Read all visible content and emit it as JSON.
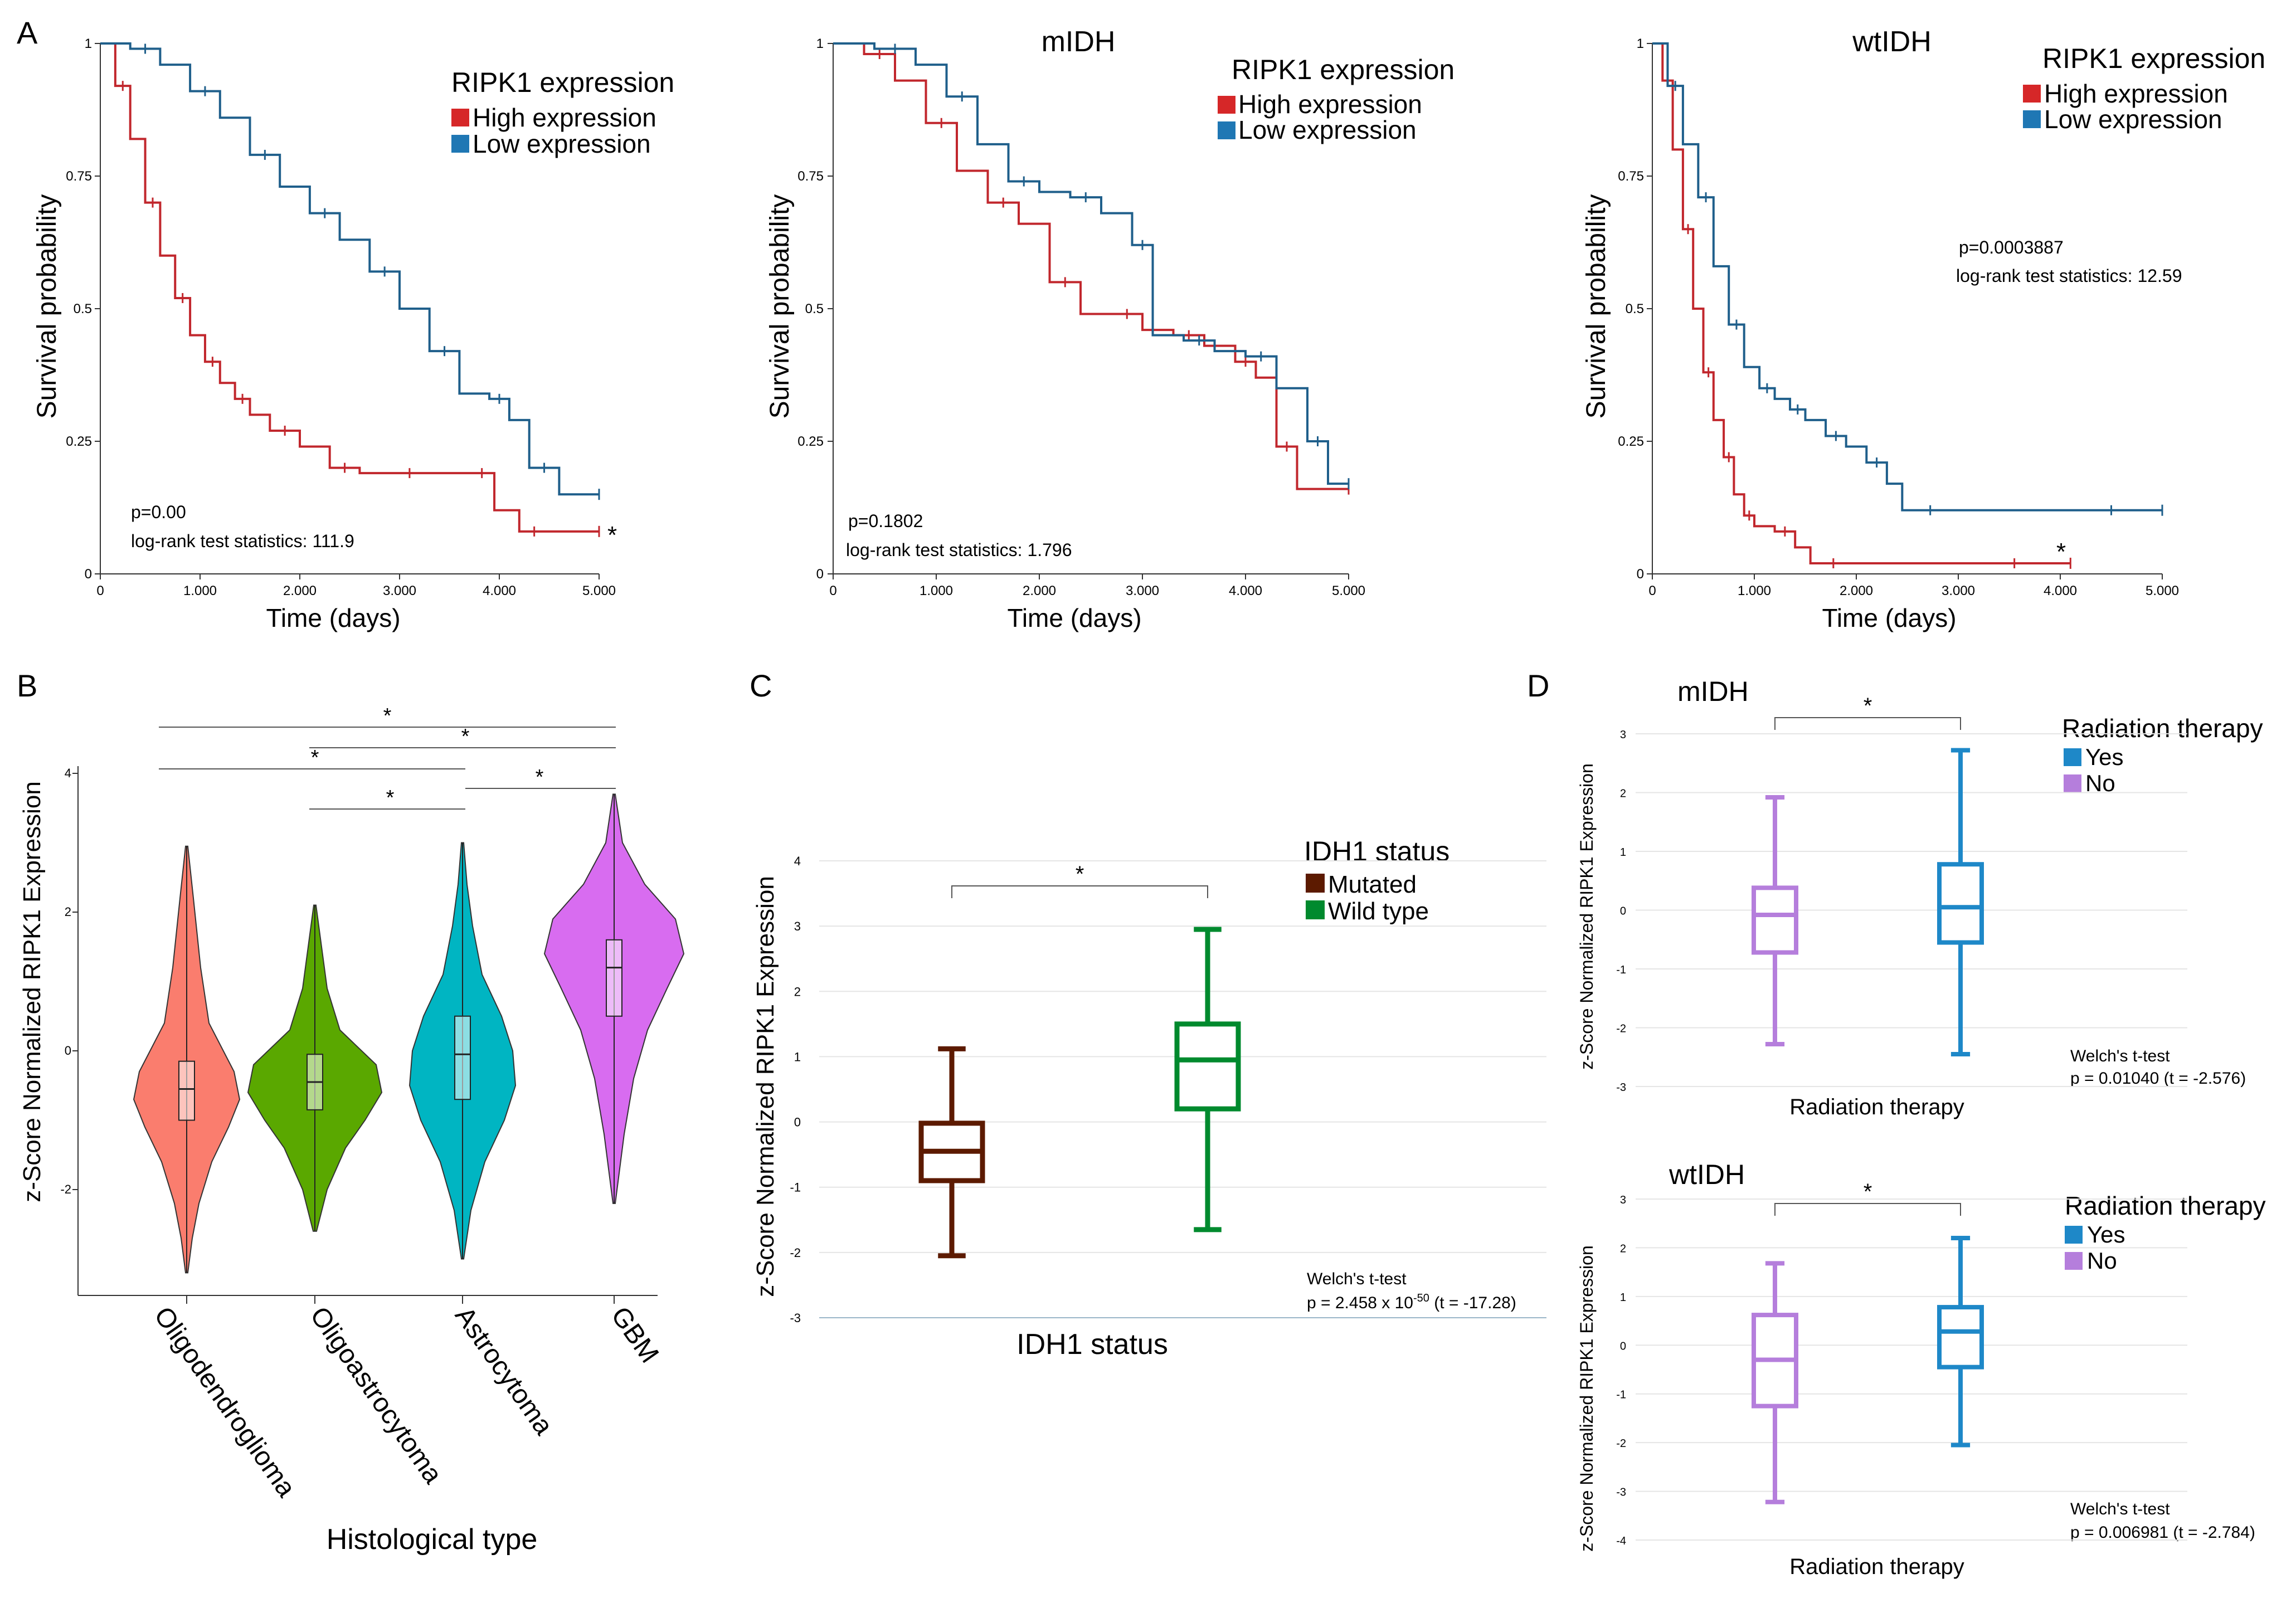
{
  "colors": {
    "high": "#c1272d",
    "low": "#1f5f8b",
    "high_legend": "#d62728",
    "low_legend": "#1f77b4",
    "mutated": "#5c1a00",
    "wildtype": "#008a2e",
    "rt_yes": "#1e88c8",
    "rt_no": "#b57edc",
    "violin_oligo": "#fa7d6e",
    "violin_oligoastro": "#5aa800",
    "violin_astro": "#00b5c2",
    "violin_gbm": "#d86cf0"
  },
  "panel_labels": {
    "A": "A",
    "B": "B",
    "C": "C",
    "D": "D"
  },
  "survival": {
    "legend_title": "RIPK1 expression",
    "legend_high": "High expression",
    "legend_low": "Low expression",
    "ylabel": "Survival probability",
    "xlabel": "Time (days)",
    "xticks": [
      "0",
      "1.000",
      "2.000",
      "3.000",
      "4.000",
      "5.000"
    ],
    "yticks": [
      "0",
      "0.25",
      "0.5",
      "0.75",
      "1"
    ]
  },
  "chart_data": [
    {
      "id": "A1",
      "type": "line",
      "title": "",
      "xlabel": "Time (days)",
      "ylabel": "Survival probability",
      "xlim": [
        0,
        5000
      ],
      "ylim": [
        0,
        1
      ],
      "p_text": "p=0.00",
      "stat_text": "log-rank test statistics: 111.9",
      "star": "*",
      "series": [
        {
          "name": "High expression",
          "x": [
            0,
            150,
            300,
            450,
            600,
            750,
            900,
            1050,
            1200,
            1350,
            1500,
            1700,
            2000,
            2300,
            2600,
            2900,
            3300,
            3700,
            3950,
            4200,
            4500,
            5000
          ],
          "y": [
            1,
            0.92,
            0.82,
            0.7,
            0.6,
            0.52,
            0.45,
            0.4,
            0.36,
            0.33,
            0.3,
            0.27,
            0.24,
            0.2,
            0.19,
            0.19,
            0.19,
            0.19,
            0.12,
            0.08,
            0.08,
            0.08
          ]
        },
        {
          "name": "Low expression",
          "x": [
            0,
            300,
            600,
            900,
            1200,
            1500,
            1800,
            2100,
            2400,
            2700,
            3000,
            3300,
            3600,
            3900,
            4100,
            4300,
            4600,
            5000
          ],
          "y": [
            1,
            0.99,
            0.96,
            0.91,
            0.86,
            0.79,
            0.73,
            0.68,
            0.63,
            0.57,
            0.5,
            0.42,
            0.34,
            0.33,
            0.29,
            0.2,
            0.15,
            0.15
          ]
        }
      ]
    },
    {
      "id": "A2",
      "type": "line",
      "title": "mIDH",
      "xlabel": "Time (days)",
      "ylabel": "Survival probability",
      "xlim": [
        0,
        5000
      ],
      "ylim": [
        0,
        1
      ],
      "p_text": "p=0.1802",
      "stat_text": "log-rank test statistics: 1.796",
      "star": "",
      "series": [
        {
          "name": "High expression",
          "x": [
            0,
            300,
            600,
            900,
            1200,
            1500,
            1800,
            2100,
            2400,
            2700,
            3000,
            3300,
            3600,
            3900,
            4100,
            4300,
            4500,
            5000
          ],
          "y": [
            1,
            0.98,
            0.93,
            0.85,
            0.76,
            0.7,
            0.66,
            0.55,
            0.49,
            0.49,
            0.46,
            0.45,
            0.43,
            0.4,
            0.37,
            0.24,
            0.16,
            0.16
          ]
        },
        {
          "name": "Low expression",
          "x": [
            0,
            400,
            800,
            1100,
            1400,
            1700,
            2000,
            2300,
            2600,
            2900,
            3100,
            3400,
            3700,
            4000,
            4300,
            4600,
            4800,
            5000
          ],
          "y": [
            1,
            0.99,
            0.96,
            0.9,
            0.81,
            0.74,
            0.72,
            0.71,
            0.68,
            0.62,
            0.45,
            0.44,
            0.42,
            0.41,
            0.35,
            0.25,
            0.17,
            0.17
          ]
        }
      ]
    },
    {
      "id": "A3",
      "type": "line",
      "title": "wtIDH",
      "xlabel": "Time (days)",
      "ylabel": "Survival probability",
      "xlim": [
        0,
        5000
      ],
      "ylim": [
        0,
        1
      ],
      "p_text": "p=0.0003887",
      "stat_text": "log-rank test statistics: 12.59",
      "star": "*",
      "series": [
        {
          "name": "High expression",
          "x": [
            0,
            100,
            200,
            300,
            400,
            500,
            600,
            700,
            800,
            900,
            1000,
            1200,
            1400,
            1550,
            2000,
            3000,
            4100
          ],
          "y": [
            1,
            0.93,
            0.8,
            0.65,
            0.5,
            0.38,
            0.29,
            0.22,
            0.15,
            0.11,
            0.09,
            0.08,
            0.05,
            0.02,
            0.02,
            0.02,
            0.02
          ]
        },
        {
          "name": "Low expression",
          "x": [
            0,
            150,
            300,
            450,
            600,
            750,
            900,
            1050,
            1200,
            1350,
            1500,
            1700,
            1900,
            2100,
            2300,
            2450,
            3000,
            4000,
            5000
          ],
          "y": [
            1,
            0.92,
            0.81,
            0.71,
            0.58,
            0.47,
            0.39,
            0.35,
            0.33,
            0.31,
            0.29,
            0.26,
            0.24,
            0.21,
            0.17,
            0.12,
            0.12,
            0.12,
            0.12
          ]
        }
      ]
    },
    {
      "id": "B",
      "type": "violin",
      "xlabel": "Histological type",
      "ylabel": "z-Score Normalized RIPK1 Expression",
      "ylim": [
        -3.5,
        4
      ],
      "yticks": [
        "4",
        "2",
        "0",
        "-2"
      ],
      "categories": [
        "Oligodendroglioma",
        "Oligoastrocytoma",
        "Astrocytoma",
        "GBM"
      ],
      "stats": [
        {
          "min": -3.2,
          "q1": -1.0,
          "median": -0.55,
          "q3": -0.15,
          "max": 2.95
        },
        {
          "min": -2.6,
          "q1": -0.85,
          "median": -0.45,
          "q3": -0.05,
          "max": 2.1
        },
        {
          "min": -3.0,
          "q1": -0.7,
          "median": -0.05,
          "q3": 0.5,
          "max": 3.0
        },
        {
          "min": -2.2,
          "q1": 0.5,
          "median": 1.2,
          "q3": 1.6,
          "max": 3.7
        }
      ],
      "significance": [
        {
          "from": 0,
          "to": 3,
          "label": "*"
        },
        {
          "from": 1,
          "to": 3,
          "label": "*"
        },
        {
          "from": 0,
          "to": 2,
          "label": "*"
        },
        {
          "from": 1,
          "to": 2,
          "label": "*"
        },
        {
          "from": 2,
          "to": 3,
          "label": "*"
        }
      ]
    },
    {
      "id": "C",
      "type": "box",
      "xlabel": "IDH1 status",
      "ylabel": "z-Score Normalized RIPK1 Expression",
      "ylim": [
        -3,
        4
      ],
      "yticks": [
        "4",
        "3",
        "2",
        "1",
        "0",
        "-1",
        "-2",
        "-3"
      ],
      "legend_title": "IDH1 status",
      "series": [
        {
          "name": "Mutated",
          "min": -2.05,
          "q1": -0.9,
          "median": -0.45,
          "q3": -0.02,
          "max": 1.12
        },
        {
          "name": "Wild type",
          "min": -1.65,
          "q1": 0.2,
          "median": 0.95,
          "q3": 1.5,
          "max": 2.95
        }
      ],
      "significance": "*",
      "test_name": "Welch's t-test",
      "test_stats": "p = 2.458 x 10",
      "test_exp": "-50",
      "test_t": " (t = -17.28)"
    },
    {
      "id": "D1",
      "type": "box",
      "title": "mIDH",
      "xlabel": "Radiation therapy",
      "ylabel": "z-Score Normalized RIPK1 Expression",
      "ylim": [
        -3,
        3
      ],
      "yticks": [
        "3",
        "2",
        "1",
        "0",
        "-1",
        "-2",
        "-3"
      ],
      "legend_title": "Radiation therapy",
      "series": [
        {
          "name": "No",
          "min": -2.28,
          "q1": -0.72,
          "median": -0.08,
          "q3": 0.38,
          "max": 1.92
        },
        {
          "name": "Yes",
          "min": -2.45,
          "q1": -0.55,
          "median": 0.05,
          "q3": 0.78,
          "max": 2.72
        }
      ],
      "legend": [
        "Yes",
        "No"
      ],
      "significance": "*",
      "test_name": "Welch's t-test",
      "test_stats": "p = 0.01040 (t = -2.576)"
    },
    {
      "id": "D2",
      "type": "box",
      "title": "wtIDH",
      "xlabel": "Radiation therapy",
      "ylabel": "z-Score Normalized RIPK1 Expression",
      "ylim": [
        -4,
        3
      ],
      "yticks": [
        "3",
        "2",
        "1",
        "0",
        "-1",
        "-2",
        "-3",
        "-4"
      ],
      "legend_title": "Radiation therapy",
      "series": [
        {
          "name": "No",
          "min": -3.22,
          "q1": -1.25,
          "median": -0.3,
          "q3": 0.62,
          "max": 1.68
        },
        {
          "name": "Yes",
          "min": -2.05,
          "q1": -0.45,
          "median": 0.28,
          "q3": 0.78,
          "max": 2.2
        }
      ],
      "legend": [
        "Yes",
        "No"
      ],
      "significance": "*",
      "test_name": "Welch's t-test",
      "test_stats": "p = 0.006981 (t = -2.784)"
    }
  ]
}
